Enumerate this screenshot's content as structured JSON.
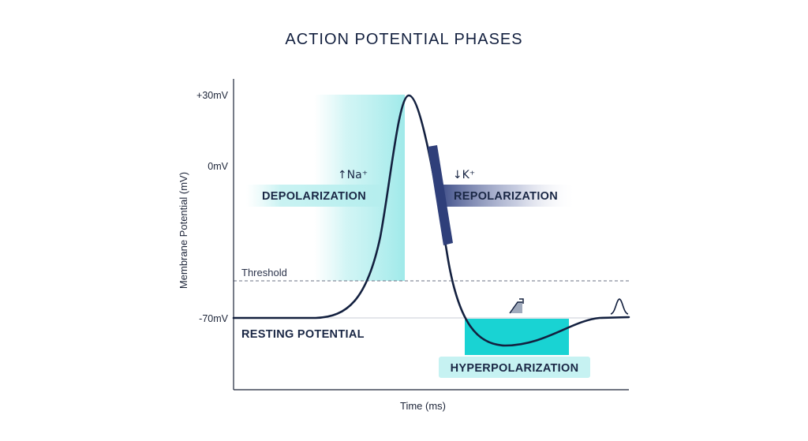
{
  "title": "ACTION POTENTIAL PHASES",
  "axes": {
    "y_label": "Membrane Potential (mV)",
    "x_label": "Time (ms)",
    "y_ticks": [
      "+30mV",
      "0mV",
      "-70mV"
    ]
  },
  "threshold_label": "Threshold",
  "phases": {
    "depolarization": "DEPOLARIZATION",
    "repolarization": "REPOLARIZATION",
    "resting": "RESTING POTENTIAL",
    "hyperpolarization": "HYPERPOLARIZATION"
  },
  "ions": {
    "sodium": "↑Na⁺",
    "potassium": "↓K⁺"
  },
  "colors": {
    "curve": "#13203f",
    "depolarization_fill": "#7fe0e0",
    "repolarization_fill": "#2f3f7a",
    "hyperpolarization_fill": "#19d3d3",
    "label_pill": "#c6f2f2"
  },
  "icons": [
    "rising-step-icon",
    "spike-icon"
  ]
}
